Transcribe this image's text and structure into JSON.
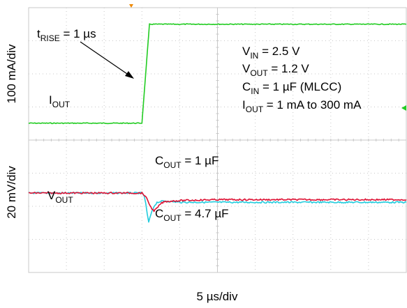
{
  "chart_data": {
    "type": "line",
    "title": "",
    "xlabel": "5 µs/div",
    "xlim": [
      -15,
      35
    ],
    "x_unit": "µs",
    "grid": true,
    "grid_style": "dotted",
    "panels": [
      {
        "name": "top",
        "ylabel": "100 mA/div",
        "ylim": [
          -50,
          350
        ],
        "y_unit": "mA",
        "series": [
          {
            "name": "I_OUT",
            "label_main": "I",
            "label_sub": "OUT",
            "color": "#22cc22",
            "x": [
              -15,
              0,
              1,
              35
            ],
            "y": [
              1,
              1,
              300,
              300
            ]
          }
        ]
      },
      {
        "name": "bottom",
        "ylabel": "20 mV/div",
        "ylim": [
          -60,
          40
        ],
        "y_unit": "mV",
        "series": [
          {
            "name": "V_OUT, C_OUT = 1 µF",
            "color": "#22ccdd",
            "x": [
              -15,
              0,
              0.3,
              0.5,
              0.7,
              0.9,
              1.2,
              1.6,
              2,
              3,
              5,
              8,
              35
            ],
            "y": [
              0,
              0,
              -2,
              -8,
              -16,
              -22,
              -16,
              -10,
              -7,
              -6,
              -7,
              -7,
              -7
            ]
          },
          {
            "name": "V_OUT, C_OUT = 4.7 µF",
            "color": "#dd1133",
            "x": [
              -15,
              0,
              0.4,
              0.8,
              1.2,
              1.6,
              2,
              2.5,
              3,
              4,
              6,
              10,
              35
            ],
            "y": [
              0,
              0,
              -2,
              -6,
              -11,
              -13.5,
              -11.5,
              -8,
              -6.5,
              -6,
              -5.5,
              -5,
              -5
            ]
          }
        ]
      }
    ],
    "annotations": {
      "trise": {
        "pre": "t",
        "sub": "RISE",
        "post": " = 1 µs"
      },
      "vout_label": {
        "main": "V",
        "sub": "OUT"
      },
      "cout1": {
        "main": "C",
        "sub": "OUT",
        "post": " = 1 µF"
      },
      "cout2": {
        "main": "C",
        "sub": "OUT",
        "post": " = 4.7 µF"
      },
      "conditions": [
        {
          "main": "V",
          "sub": "IN",
          "post": " = 2.5 V"
        },
        {
          "main": "V",
          "sub": "OUT",
          "post": " = 1.2 V"
        },
        {
          "main": "C",
          "sub": "IN",
          "post": " = 1 µF (MLCC)"
        },
        {
          "main": "I",
          "sub": "OUT",
          "post": " = 1 mA to 300 mA"
        }
      ]
    },
    "markers": {
      "trigger_color": "#ee8800",
      "ref_marker_color": "#22cc22"
    }
  }
}
